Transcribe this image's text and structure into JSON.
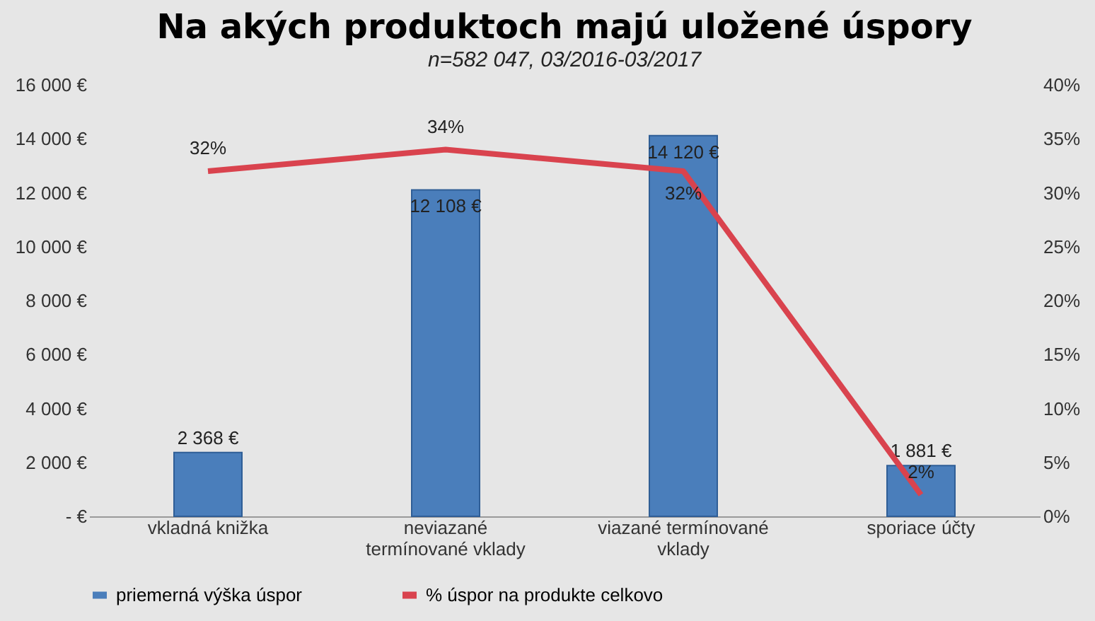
{
  "chart_data": {
    "type": "bar",
    "title": "Na akých produktoch majú uložené úspory",
    "subtitle": "n=582 047, 03/2016-03/2017",
    "categories": [
      "vkladná knižka",
      "neviazané termínované vklady",
      "viazané termínované vklady",
      "sporiace účty"
    ],
    "series": [
      {
        "name": "priemerná výška úspor",
        "type": "bar",
        "color": "#4a7ebb",
        "values": [
          2368,
          12108,
          14120,
          1881
        ],
        "value_labels": [
          "2 368 €",
          "12 108 €",
          "14 120 €",
          "1 881 €"
        ]
      },
      {
        "name": "% úspor na produkte celkovo",
        "type": "line",
        "axis": "y2",
        "color": "#d9434e",
        "values": [
          32,
          34,
          32,
          2
        ],
        "value_labels": [
          "32%",
          "34%",
          "32%",
          "2%"
        ]
      }
    ],
    "ylim": [
      0,
      16000
    ],
    "yticks": [
      {
        "value": 0,
        "label": "-   €"
      },
      {
        "value": 2000,
        "label": "2 000 €"
      },
      {
        "value": 4000,
        "label": "4 000 €"
      },
      {
        "value": 6000,
        "label": "6 000 €"
      },
      {
        "value": 8000,
        "label": "8 000 €"
      },
      {
        "value": 10000,
        "label": "10 000 €"
      },
      {
        "value": 12000,
        "label": "12 000 €"
      },
      {
        "value": 14000,
        "label": "14 000 €"
      },
      {
        "value": 16000,
        "label": "16 000 €"
      }
    ],
    "y2lim": [
      0,
      40
    ],
    "y2ticks": [
      {
        "value": 0,
        "label": "0%"
      },
      {
        "value": 5,
        "label": "5%"
      },
      {
        "value": 10,
        "label": "10%"
      },
      {
        "value": 15,
        "label": "15%"
      },
      {
        "value": 20,
        "label": "20%"
      },
      {
        "value": 25,
        "label": "25%"
      },
      {
        "value": 30,
        "label": "30%"
      },
      {
        "value": 35,
        "label": "35%"
      },
      {
        "value": 40,
        "label": "40%"
      }
    ],
    "grid": false,
    "legend": "bottom"
  }
}
